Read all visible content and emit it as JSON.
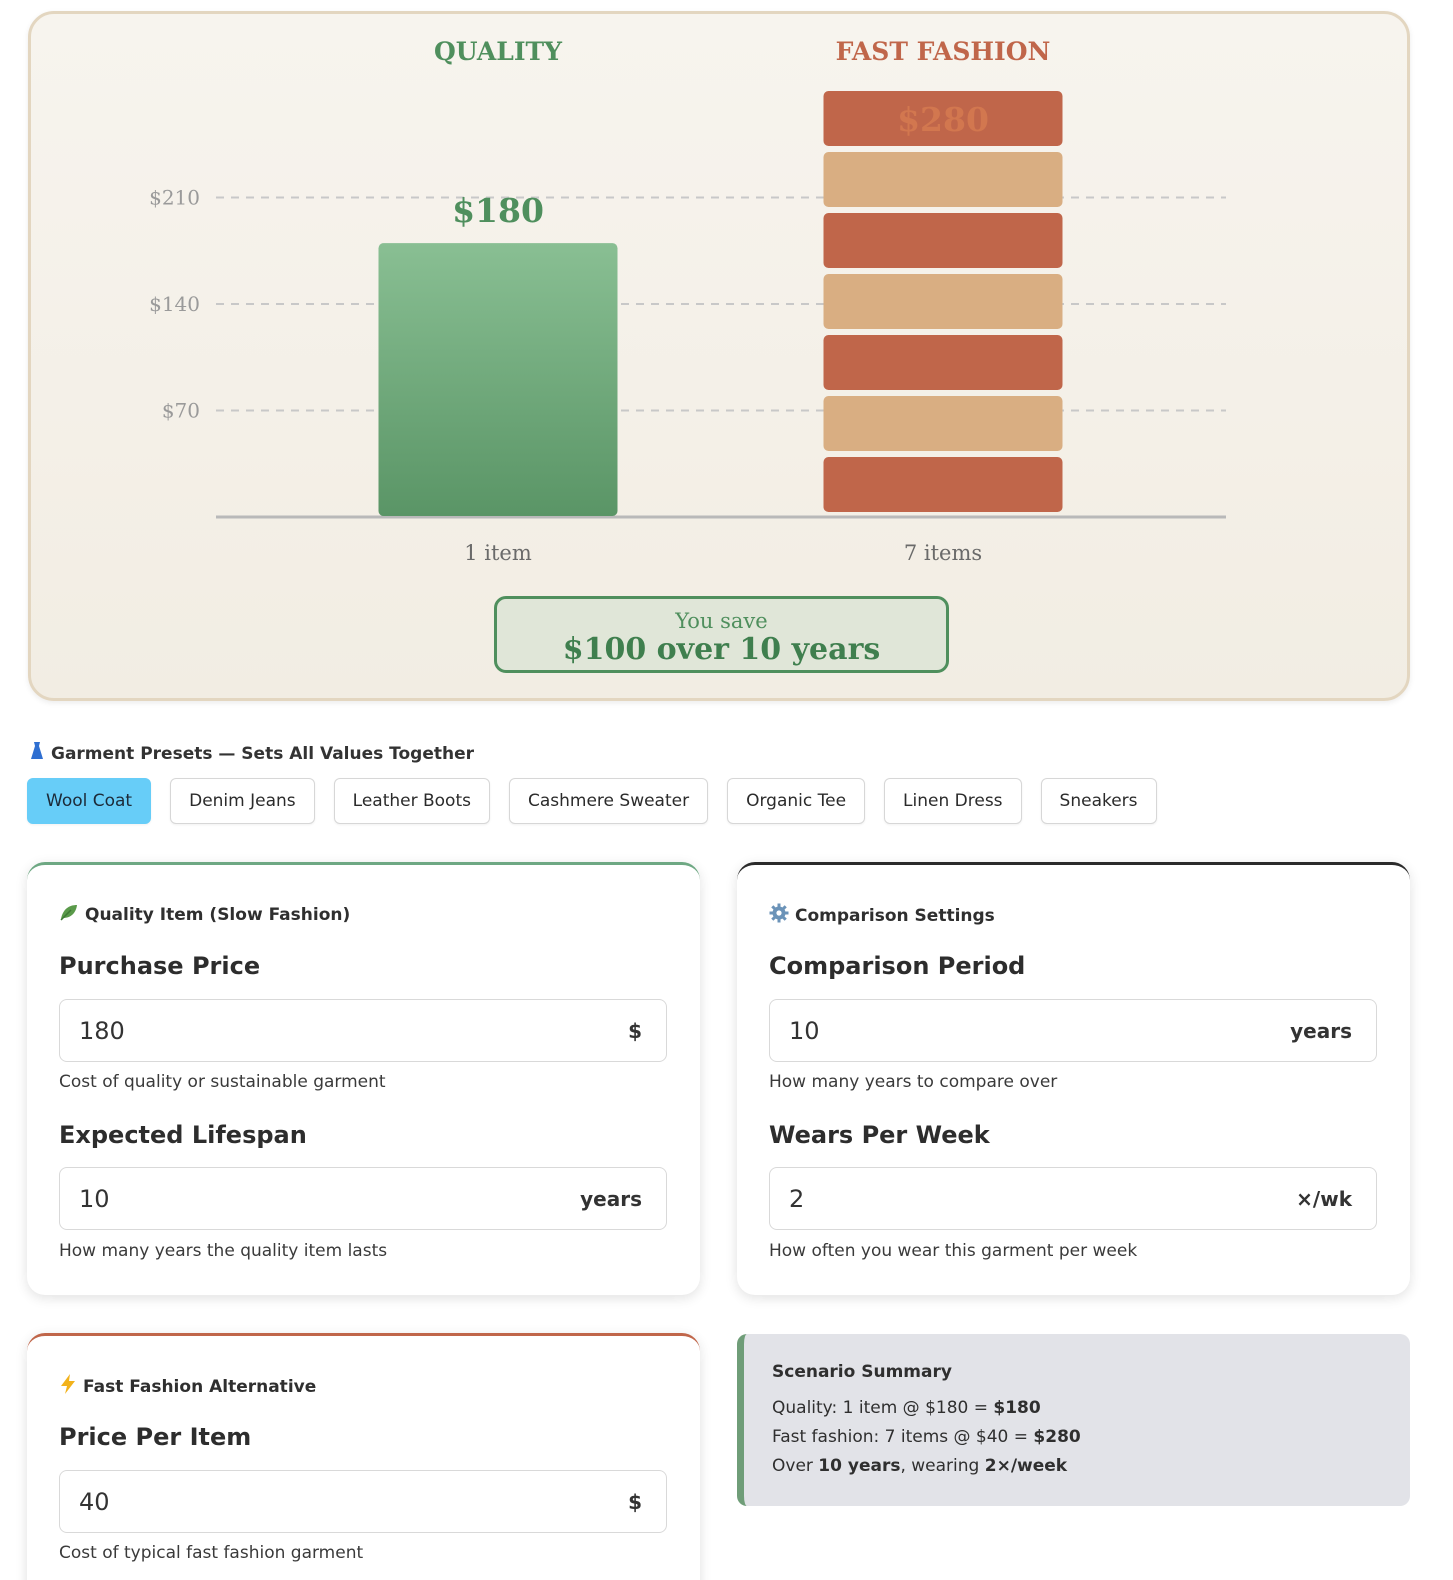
{
  "chart": {
    "quality_label": "QUALITY",
    "fast_label": "FAST FASHION",
    "quality_total_label": "$180",
    "fast_total_label": "$280",
    "quality_items_label": "1 item",
    "fast_items_label": "7 items",
    "colors": {
      "quality": "#4f8f5d",
      "fast": "#c0664a",
      "fast_alt": "#d9ae82",
      "grid": "#c8c8c8",
      "axis_text": "#9a9a9a"
    }
  },
  "chart_data": {
    "type": "bar",
    "categories": [
      "QUALITY",
      "FAST FASHION"
    ],
    "values": [
      180,
      280
    ],
    "stack_counts": [
      1,
      7
    ],
    "item_price": [
      180,
      40
    ],
    "yticks": [
      70,
      140,
      210
    ],
    "ytick_labels": [
      "$70",
      "$140",
      "$210"
    ],
    "ylim": [
      0,
      280
    ],
    "grid": true
  },
  "savings": {
    "lead": "You save",
    "amount": "$100 over 10 years"
  },
  "presets": {
    "title": "Garment Presets — Sets All Values Together",
    "icon": "dress-icon",
    "items": [
      "Wool Coat",
      "Denim Jeans",
      "Leather Boots",
      "Cashmere Sweater",
      "Organic Tee",
      "Linen Dress",
      "Sneakers"
    ],
    "active": "Wool Coat"
  },
  "quality_panel": {
    "icon": "leaf-icon",
    "title": "Quality Item (Slow Fashion)",
    "price_label": "Purchase Price",
    "price_value": "180",
    "price_unit": "$",
    "price_help": "Cost of quality or sustainable garment",
    "lifespan_label": "Expected Lifespan",
    "lifespan_value": "10",
    "lifespan_unit": "years",
    "lifespan_help": "How many years the quality item lasts"
  },
  "settings_panel": {
    "icon": "gear-icon",
    "title": "Comparison Settings",
    "period_label": "Comparison Period",
    "period_value": "10",
    "period_unit": "years",
    "period_help": "How many years to compare over",
    "wears_label": "Wears Per Week",
    "wears_value": "2",
    "wears_unit": "×/wk",
    "wears_help": "How often you wear this garment per week"
  },
  "fast_panel": {
    "icon": "lightning-icon",
    "title": "Fast Fashion Alternative",
    "price_label": "Price Per Item",
    "price_value": "40",
    "price_unit": "$",
    "price_help": "Cost of typical fast fashion garment"
  },
  "summary": {
    "title": "Scenario Summary",
    "quality_prefix": "Quality: 1 item @ $180 = ",
    "quality_total": "$180",
    "fast_prefix": "Fast fashion: 7 items @ $40 = ",
    "fast_total": "$280",
    "over_prefix": "Over ",
    "over_years": "10 years",
    "over_mid": ", wearing ",
    "over_wears": "2×/week"
  }
}
